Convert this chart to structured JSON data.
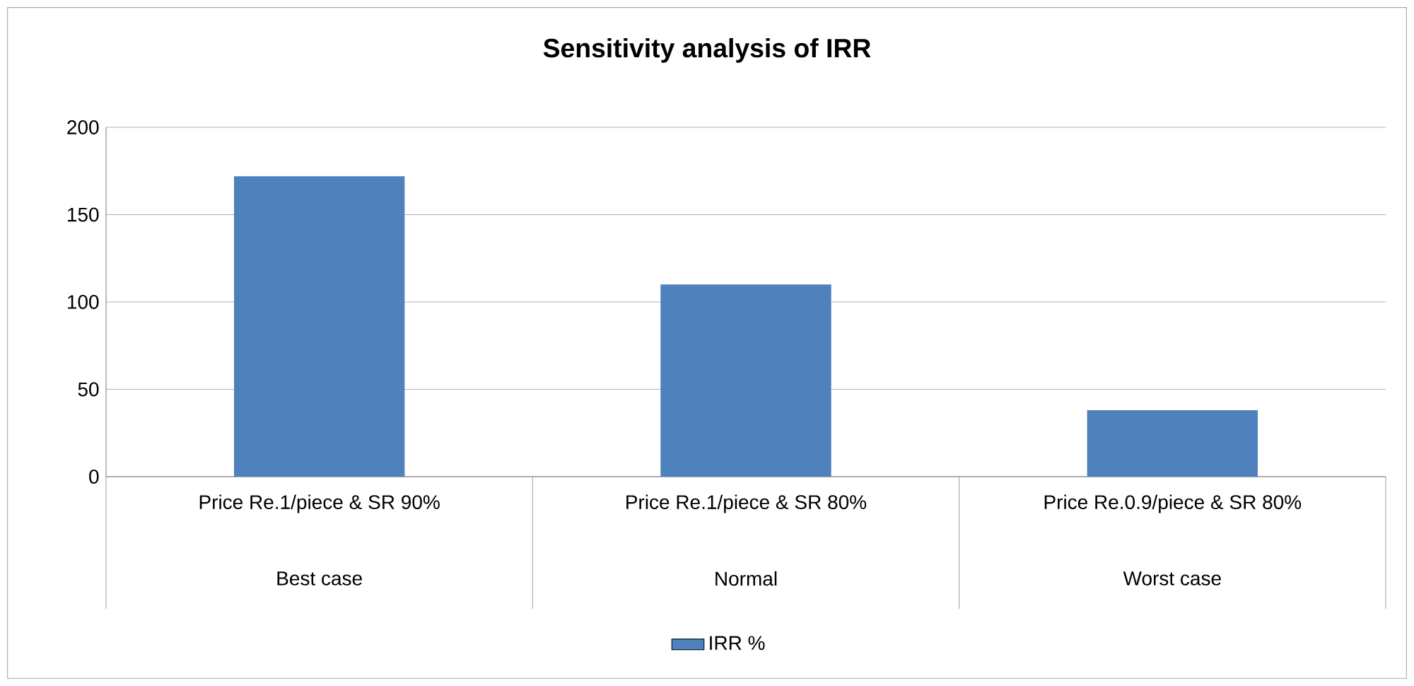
{
  "chart_data": {
    "type": "bar",
    "title": "Sensitivity analysis of IRR",
    "categories": [
      "Price Re.1/piece &  SR 90%",
      "Price Re.1/piece &  SR 80%",
      "Price Re.0.9/piece &  SR 80%"
    ],
    "annotations": [
      "Best case",
      "Normal",
      "Worst case"
    ],
    "series": [
      {
        "name": "IRR %",
        "color": "#4f81bd",
        "values": [
          172,
          110,
          38
        ]
      }
    ],
    "ylim": [
      0,
      200
    ],
    "yticks": [
      0,
      50,
      100,
      150,
      200
    ],
    "grid": "y",
    "legend": "bottom"
  }
}
